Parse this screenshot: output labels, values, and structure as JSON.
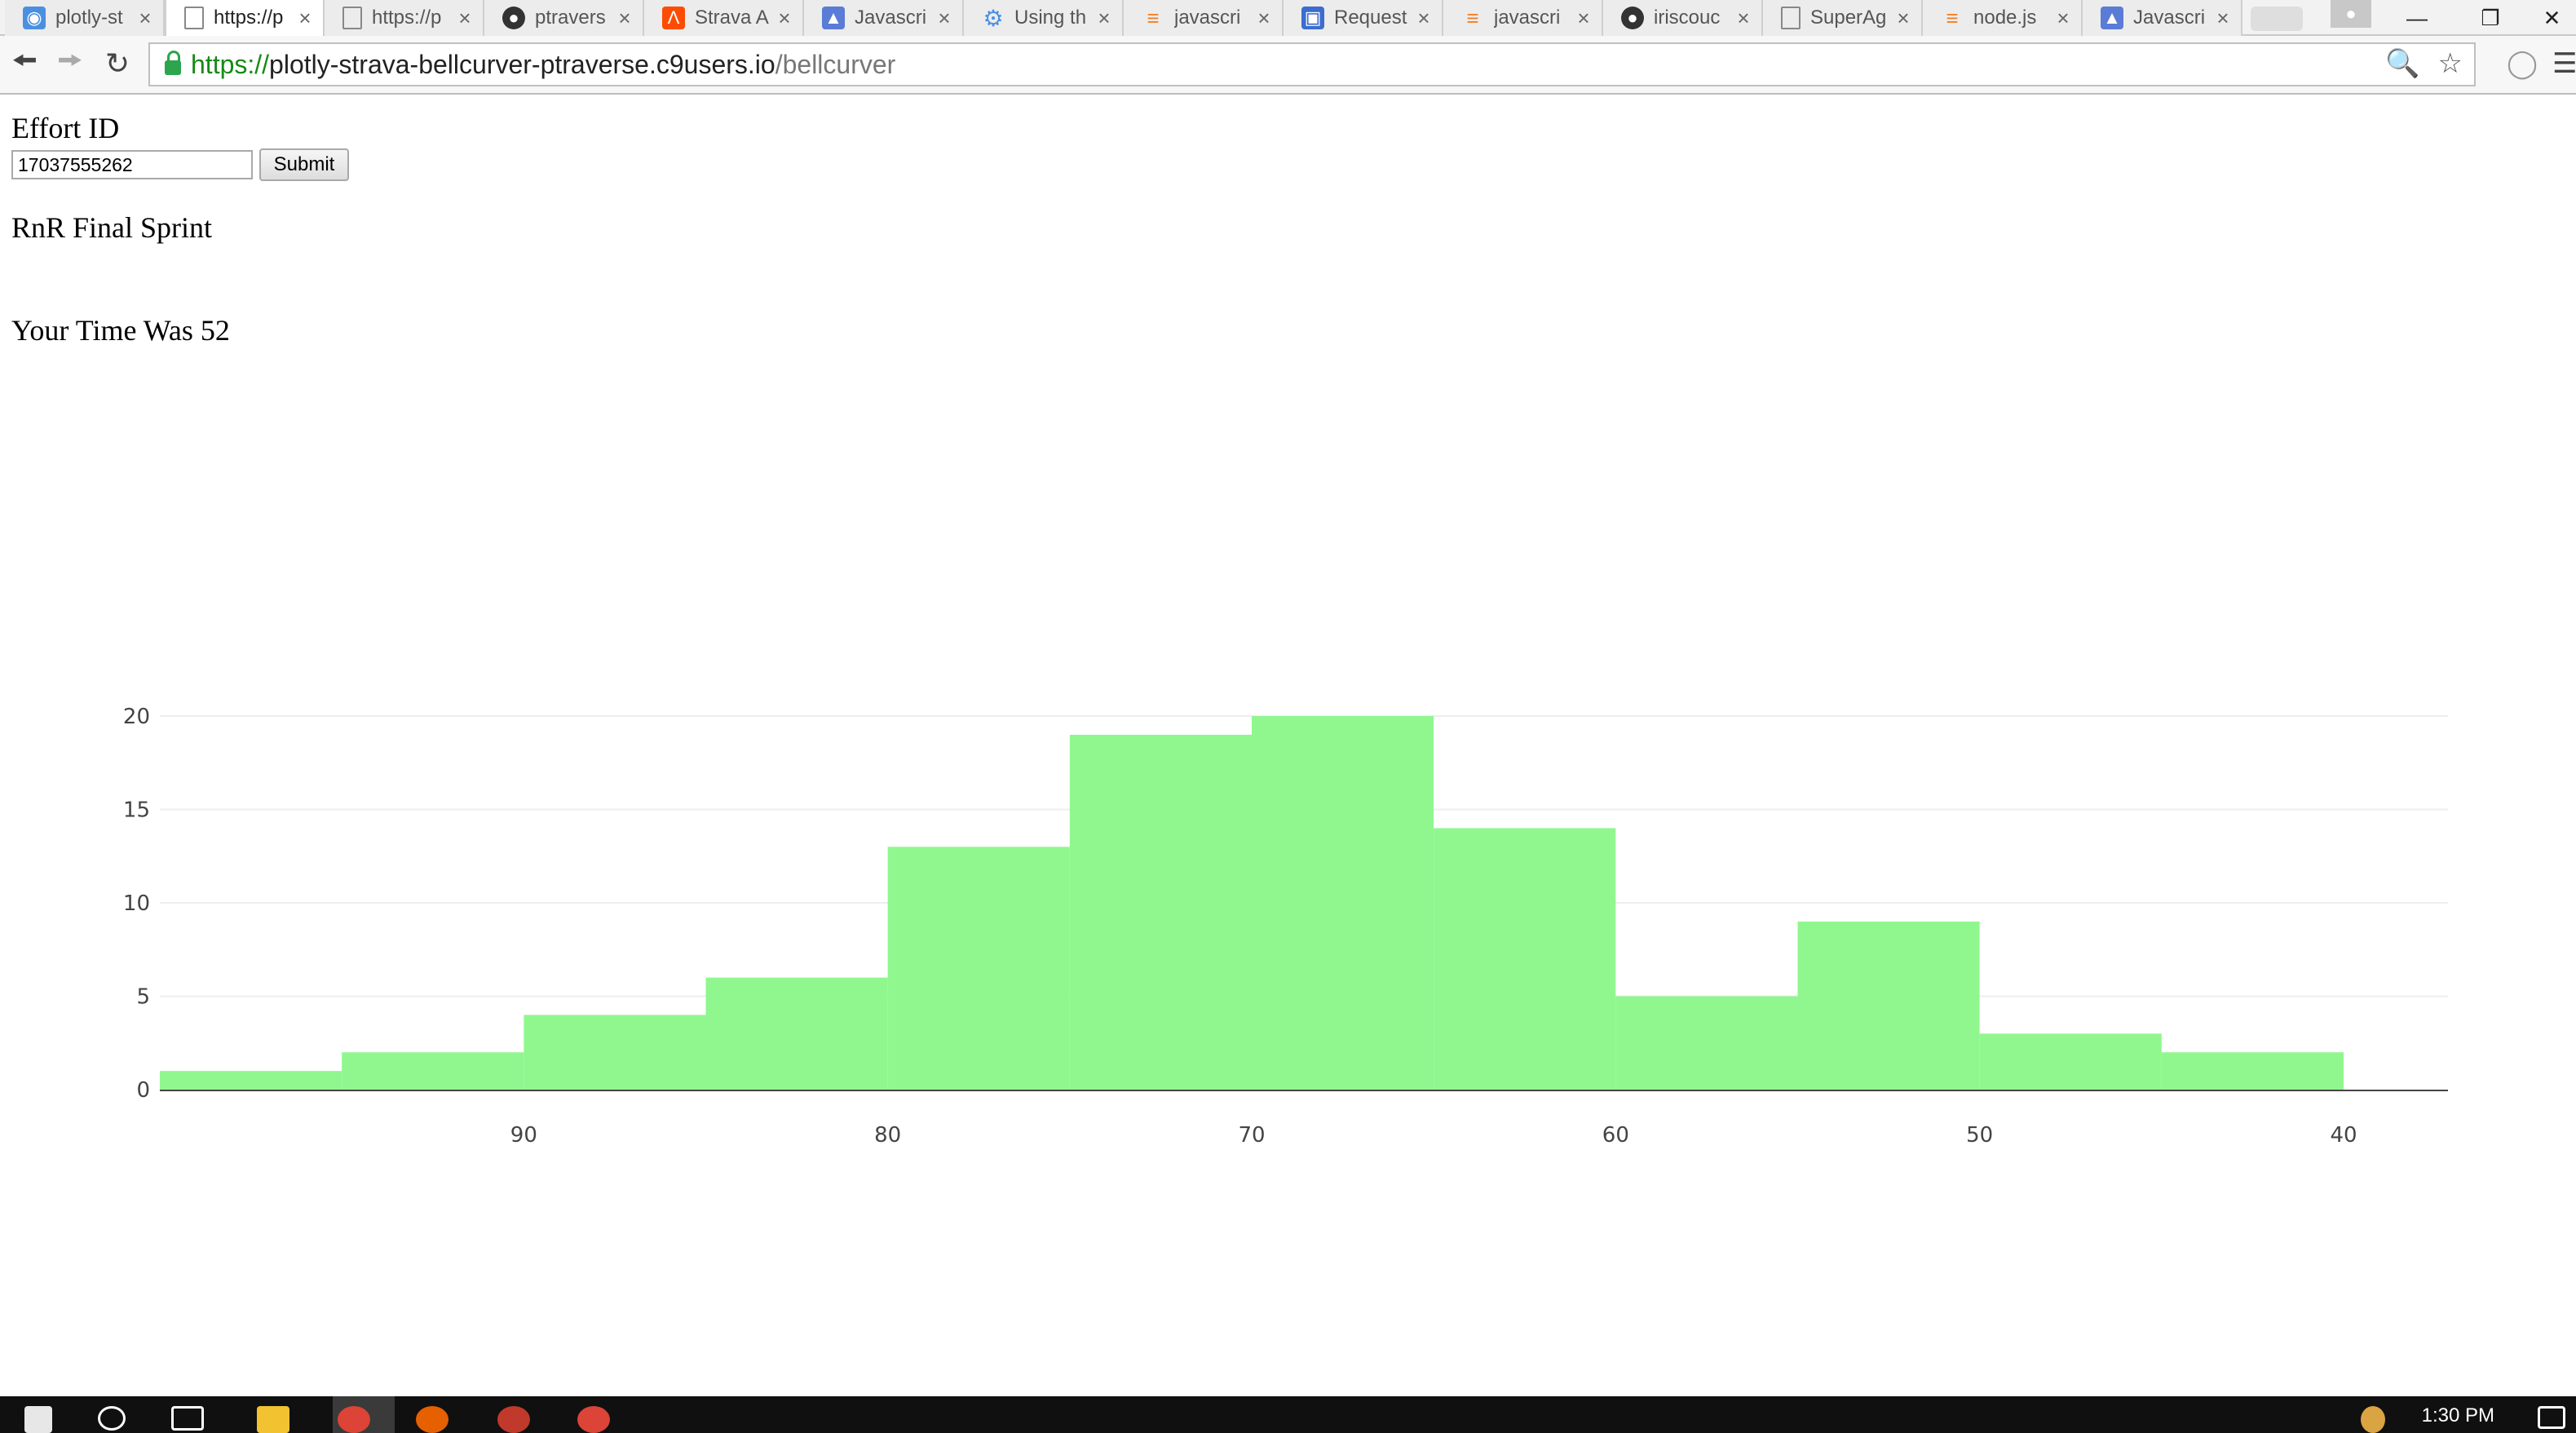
{
  "browser": {
    "tabs": [
      {
        "label": "plotly-st",
        "favicon": "plotly-icon",
        "active": false
      },
      {
        "label": "https://p",
        "favicon": "page-icon",
        "active": true
      },
      {
        "label": "https://p",
        "favicon": "page-icon",
        "active": false
      },
      {
        "label": "ptravers",
        "favicon": "github-icon",
        "active": false
      },
      {
        "label": "Strava A",
        "favicon": "strava-icon",
        "active": false
      },
      {
        "label": "Javascri",
        "favicon": "chart-icon",
        "active": false
      },
      {
        "label": "Using th",
        "favicon": "gear-icon",
        "active": false
      },
      {
        "label": "javascri",
        "favicon": "stackoverflow-icon",
        "active": false
      },
      {
        "label": "Request",
        "favicon": "request-icon",
        "active": false
      },
      {
        "label": "javascri",
        "favicon": "stackoverflow-icon",
        "active": false
      },
      {
        "label": "iriscouc",
        "favicon": "github-icon",
        "active": false
      },
      {
        "label": "SuperAg",
        "favicon": "page-icon",
        "active": false
      },
      {
        "label": "node.js",
        "favicon": "stackoverflow-icon",
        "active": false
      },
      {
        "label": "Javascri",
        "favicon": "chart-icon",
        "active": false
      }
    ],
    "url": {
      "scheme": "https://",
      "host": "plotly-strava-bellcurver-ptraverse.c9users.io",
      "path": "/bellcurver"
    }
  },
  "page": {
    "effort_label": "Effort ID",
    "effort_input_value": "17037555262",
    "submit_label": "Submit",
    "segment_name": "RnR Final Sprint",
    "your_time": "Your Time Was 52"
  },
  "chart_data": {
    "type": "bar",
    "histogram": true,
    "bar_color": "#90f78f",
    "x_reversed": true,
    "bin_edges": [
      100,
      95,
      90,
      85,
      80,
      75,
      70,
      65,
      60,
      55,
      50,
      45,
      40
    ],
    "values": [
      1,
      2,
      4,
      6,
      13,
      19,
      20,
      14,
      5,
      9,
      3,
      2
    ],
    "x_ticks": [
      90,
      80,
      70,
      60,
      50,
      40
    ],
    "y_ticks": [
      0,
      5,
      10,
      15,
      20
    ],
    "ylim": [
      0,
      20
    ],
    "grid": true,
    "title": "",
    "xlabel": "",
    "ylabel": ""
  },
  "taskbar": {
    "clock": "1:30 PM"
  }
}
